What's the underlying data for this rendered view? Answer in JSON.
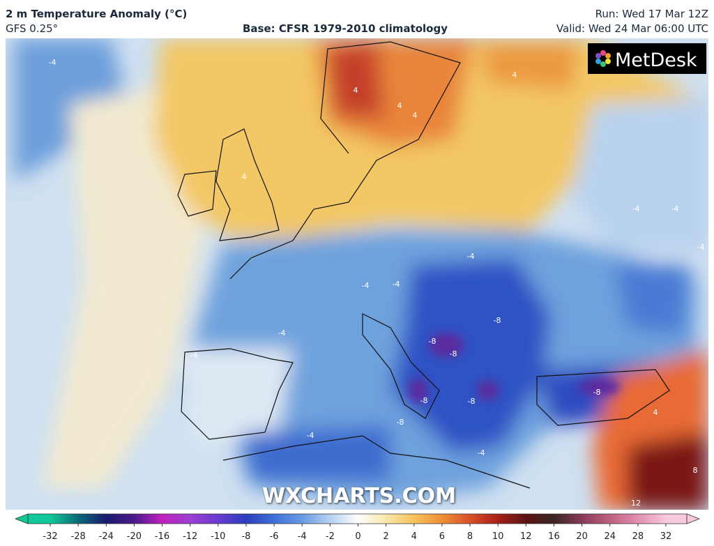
{
  "header": {
    "title": "2 m Temperature Anomaly (°C)",
    "model": "GFS 0.25°",
    "base": "Base: CFSR 1979-2010 climatology",
    "run": "Run: Wed 17 Mar 12Z",
    "valid": "Valid: Wed 24 Mar 06:00 UTC"
  },
  "logo": "MetDesk",
  "watermark": "WXCHARTS.COM",
  "contour_labels": [
    "-4",
    "4",
    "4",
    "4",
    "4",
    "4",
    "-4",
    "-4",
    "-4",
    "-4",
    "-4",
    "-4",
    "-4",
    "-4",
    "-8",
    "-8",
    "-8",
    "-8",
    "-8",
    "-8",
    "-8",
    "-4",
    "-4",
    "8",
    "12",
    "4"
  ],
  "colorbar": {
    "ticks": [
      -32,
      -28,
      -24,
      -20,
      -16,
      -12,
      -10,
      -8,
      -6,
      -4,
      -2,
      0,
      2,
      4,
      6,
      8,
      10,
      12,
      16,
      20,
      24,
      28,
      32
    ],
    "colors": [
      "#10c89a",
      "#0a6a78",
      "#1a1a6e",
      "#4a1a8a",
      "#c020c0",
      "#9a40d0",
      "#6a3ad0",
      "#2b3fbf",
      "#3f6ed8",
      "#6a9ae2",
      "#b5d2f0",
      "#ffffff",
      "#fbe8a8",
      "#f5c35a",
      "#ee8f35",
      "#d8502a",
      "#a8201a",
      "#5a1414",
      "#3a2424",
      "#8a3a5a",
      "#c06080",
      "#e090b0",
      "#f8c8dc"
    ]
  }
}
